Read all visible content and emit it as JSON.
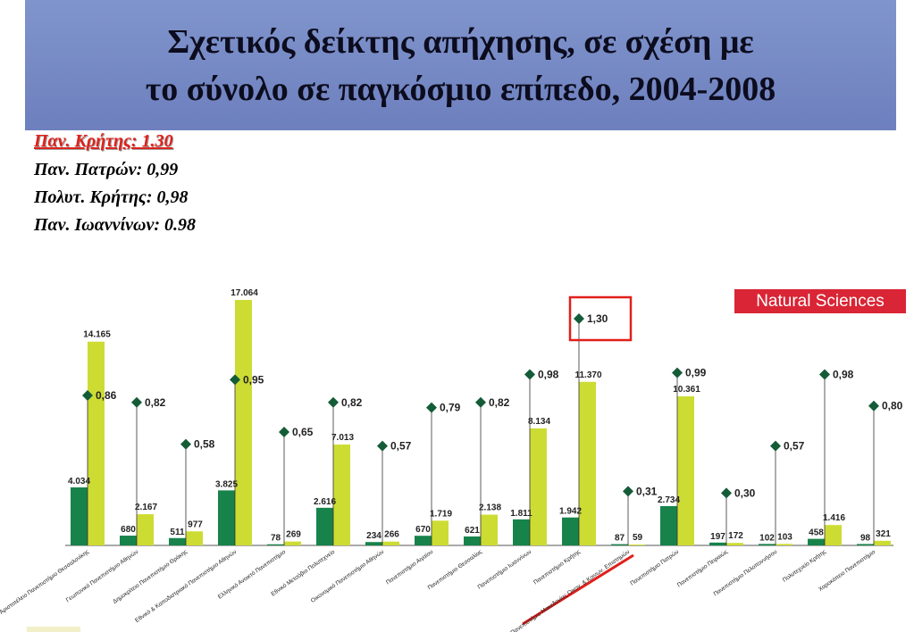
{
  "title": {
    "line1": "Σχετικός δείκτης απήχησης, σε σχέση με",
    "line2": "το σύνολο σε παγκόσμιο επίπεδο, 2004-2008"
  },
  "notes": [
    "Παν. Κρήτης: 1.30",
    "Παν. Πατρών: 0,99",
    "Πολυτ. Κρήτης: 0,98",
    "Παν.  Ιωαννίνων: 0.98"
  ],
  "badge": "Natural Sciences",
  "colors": {
    "banner": "#7486c2",
    "highlight": "#e0201a",
    "dark_bar": "#17834a",
    "light_bar": "#cddc33",
    "marker": "#145c38",
    "badge": "#d92535"
  },
  "chart_data": {
    "type": "bar",
    "categories": [
      "Αριστοτέλειο Πανεπιστήμιο Θεσσαλονίκης",
      "Γεωπονικό Πανεπιστήμιο Αθηνών",
      "Δημοκρίτειο Πανεπιστήμιο Θράκης",
      "Εθνικό & Καποδιστριακό Πανεπιστήμιο Αθηνών",
      "Ελληνικό Ανοικτό Πανεπιστήμιο",
      "Εθνικό Μετσόβιο Πολυτεχνείο",
      "Οικονομικό Πανεπιστήμιο Αθηνών",
      "Πανεπιστήμιο Αιγαίου",
      "Πανεπιστήμιο Θεσσαλίας",
      "Πανεπιστήμιο Ιωαννίνων",
      "Πανεπιστήμιο Κρήτης",
      "Πανεπιστήμιο Μακεδονίας Οικον. & Κοινων. Επιστημών",
      "Πανεπιστήμιο Πατρών",
      "Πανεπιστήμιο Πειραιώς",
      "Πανεπιστήμιο Πελοποννήσου",
      "Πολυτεχνείο Κρήτης",
      "Χαροκόπειο Πανεπιστήμιο"
    ],
    "series": [
      {
        "values": [
          4034,
          680,
          511,
          3825,
          78,
          2616,
          234,
          670,
          621,
          1811,
          1942,
          87,
          2734,
          197,
          102,
          458,
          98
        ],
        "labels": [
          "4.034",
          "680",
          "511",
          "3.825",
          "78",
          "2.616",
          "234",
          "670",
          "621",
          "1.811",
          "1.942",
          "87",
          "2.734",
          "197",
          "102",
          "458",
          "98"
        ]
      },
      {
        "values": [
          14165,
          2167,
          977,
          17064,
          269,
          7013,
          266,
          1719,
          2138,
          8134,
          11370,
          59,
          10361,
          172,
          103,
          1416,
          321
        ],
        "labels": [
          "14.165",
          "2.167",
          "977",
          "17.064",
          "269",
          "7.013",
          "266",
          "1.719",
          "2.138",
          "8.134",
          "11.370",
          "59",
          "10.361",
          "172",
          "103",
          "1.416",
          "321"
        ]
      }
    ],
    "index": {
      "values": [
        0.86,
        0.82,
        0.58,
        0.95,
        0.65,
        0.82,
        0.57,
        0.79,
        0.82,
        0.98,
        1.3,
        0.31,
        0.99,
        0.3,
        0.57,
        0.98,
        0.8
      ],
      "labels": [
        "0,86",
        "0,82",
        "0,58",
        "0,95",
        "0,65",
        "0,82",
        "0,57",
        "0,79",
        "0,82",
        "0,98",
        "1,30",
        "0,31",
        "0,99",
        "0,30",
        "0,57",
        "0,98",
        "0,80"
      ]
    },
    "highlight_index": 10,
    "ylim": [
      0,
      17064
    ],
    "index_ylim": [
      0,
      1.3
    ],
    "grid": false
  }
}
